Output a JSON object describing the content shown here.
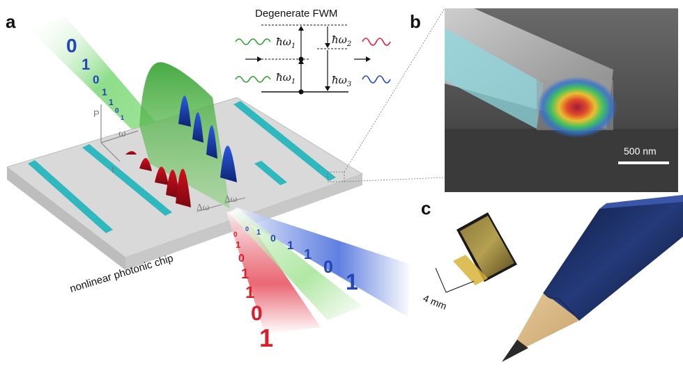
{
  "panels": {
    "a": "a",
    "b": "b",
    "c": "c"
  },
  "fwm": {
    "title": "Degenerate FWM",
    "hw1_top": "ħω",
    "hw1_top_sub": "1",
    "hw1_bot": "ħω",
    "hw1_bot_sub": "1",
    "hw2": "ħω",
    "hw2_sub": "2",
    "hw3": "ħω",
    "hw3_sub": "3"
  },
  "axes": {
    "p": "P",
    "omega": "ω",
    "t": "t"
  },
  "detuning": {
    "left": "Δω",
    "right": "Δω"
  },
  "chip_label": "nonlinear photonic chip",
  "bits": {
    "input": [
      "0",
      "1",
      "0",
      "1",
      "1",
      "0",
      "1"
    ],
    "red": [
      "0",
      "1",
      "0",
      "1",
      "1",
      "0",
      "1"
    ],
    "blue": [
      "0",
      "1",
      "0",
      "1",
      "1",
      "0",
      "1"
    ]
  },
  "scale_bar": "500 nm",
  "chip_size": "4 mm",
  "colors": {
    "pump": "#39a845",
    "signal": "#d81f2a",
    "idler": "#1d3fa6",
    "waveguide": "#2fb8bd"
  }
}
